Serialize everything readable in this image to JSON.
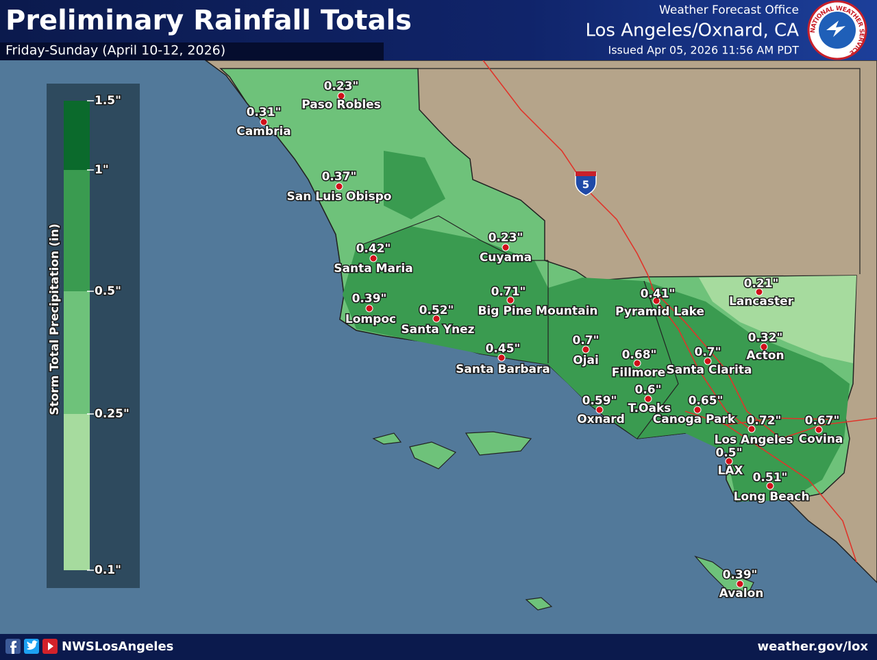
{
  "header": {
    "title": "Preliminary Rainfall Totals",
    "subtitle": "Friday-Sunday (April 10-12, 2026)",
    "office": "Weather Forecast Office",
    "location": "Los Angeles/Oxnard, CA",
    "issued": "Issued Apr 05, 2026 11:56 AM PDT"
  },
  "logo": {
    "text": "NATIONAL WEATHER SERVICE"
  },
  "legend": {
    "title": "Storm Total Precipitation (in)",
    "labels": [
      "1.5\"",
      "1\"",
      "0.5\"",
      "0.25\"",
      "0.1\""
    ],
    "colors": [
      "#0b6a2c",
      "#3a9b50",
      "#6ec27a",
      "#a6db9e"
    ]
  },
  "highway": "5",
  "stations": [
    {
      "name": "Paso Robles",
      "amount": "0.23\""
    },
    {
      "name": "Cambria",
      "amount": "0.31\""
    },
    {
      "name": "San Luis Obispo",
      "amount": "0.37\""
    },
    {
      "name": "Santa Maria",
      "amount": "0.42\""
    },
    {
      "name": "Cuyama",
      "amount": "0.23\""
    },
    {
      "name": "Lompoc",
      "amount": "0.39\""
    },
    {
      "name": "Santa Ynez",
      "amount": "0.52\""
    },
    {
      "name": "Big Pine Mountain",
      "amount": "0.71\""
    },
    {
      "name": "Santa Barbara",
      "amount": "0.45\""
    },
    {
      "name": "Ojai",
      "amount": "0.7\""
    },
    {
      "name": "Pyramid Lake",
      "amount": "0.41\""
    },
    {
      "name": "Lancaster",
      "amount": "0.21\""
    },
    {
      "name": "Fillmore",
      "amount": "0.68\""
    },
    {
      "name": "Santa Clarita",
      "amount": "0.7\""
    },
    {
      "name": "Acton",
      "amount": "0.32\""
    },
    {
      "name": "Oxnard",
      "amount": "0.59\""
    },
    {
      "name": "T.Oaks",
      "amount": "0.6\""
    },
    {
      "name": "Canoga Park",
      "amount": "0.65\""
    },
    {
      "name": "Los Angeles",
      "amount": "0.72\""
    },
    {
      "name": "Covina",
      "amount": "0.67\""
    },
    {
      "name": "LAX",
      "amount": "0.5\""
    },
    {
      "name": "Long Beach",
      "amount": "0.51\""
    },
    {
      "name": "Avalon",
      "amount": "0.39\""
    }
  ],
  "footer": {
    "handle": "NWSLosAngeles",
    "url": "weather.gov/lox"
  }
}
